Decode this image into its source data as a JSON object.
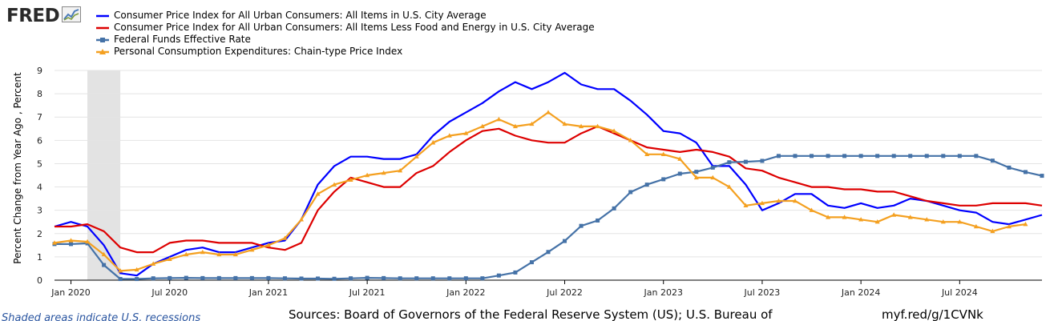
{
  "logo": {
    "text": "FRED",
    "icon": "fred-chart-icon"
  },
  "legend_items": [
    "Consumer Price Index for All Urban Consumers: All Items in U.S. City Average",
    "Consumer Price Index for All Urban Consumers: All Items Less Food and Energy in U.S. City Average",
    "Federal Funds Effective Rate",
    "Personal Consumption Expenditures: Chain-type Price Index"
  ],
  "footer": {
    "note": "Shaded areas indicate U.S. recessions",
    "sources": "Sources: Board of Governors of the Federal Reserve System (US); U.S. Bureau of",
    "url": "myf.red/g/1CVNk"
  },
  "chart_data": {
    "type": "line",
    "ylabel": "Percent Change from Year Ago , Percent",
    "xlabel": "",
    "ylim": [
      0,
      9
    ],
    "yticks": [
      0,
      1,
      2,
      3,
      4,
      5,
      6,
      7,
      8,
      9
    ],
    "xlim": [
      "2019-12",
      "2024-12"
    ],
    "xticks": [
      "Jan 2020",
      "Jul 2020",
      "Jan 2021",
      "Jul 2021",
      "Jan 2022",
      "Jul 2022",
      "Jan 2023",
      "Jul 2023",
      "Jan 2024",
      "Jul 2024"
    ],
    "grid": "horizontal",
    "recession_shading": [
      "2020-02",
      "2020-04"
    ],
    "x": [
      "2019-12",
      "2020-01",
      "2020-02",
      "2020-03",
      "2020-04",
      "2020-05",
      "2020-06",
      "2020-07",
      "2020-08",
      "2020-09",
      "2020-10",
      "2020-11",
      "2020-12",
      "2021-01",
      "2021-02",
      "2021-03",
      "2021-04",
      "2021-05",
      "2021-06",
      "2021-07",
      "2021-08",
      "2021-09",
      "2021-10",
      "2021-11",
      "2021-12",
      "2022-01",
      "2022-02",
      "2022-03",
      "2022-04",
      "2022-05",
      "2022-06",
      "2022-07",
      "2022-08",
      "2022-09",
      "2022-10",
      "2022-11",
      "2022-12",
      "2023-01",
      "2023-02",
      "2023-03",
      "2023-04",
      "2023-05",
      "2023-06",
      "2023-07",
      "2023-08",
      "2023-09",
      "2023-10",
      "2023-11",
      "2023-12",
      "2024-01",
      "2024-02",
      "2024-03",
      "2024-04",
      "2024-05",
      "2024-06",
      "2024-07",
      "2024-08",
      "2024-09",
      "2024-10",
      "2024-11",
      "2024-12"
    ],
    "series": [
      {
        "name": "Consumer Price Index for All Urban Consumers: All Items in U.S. City Average",
        "color": "#0000ff",
        "marker": "none",
        "values": [
          2.3,
          2.5,
          2.3,
          1.5,
          0.3,
          0.2,
          0.7,
          1.0,
          1.3,
          1.4,
          1.2,
          1.2,
          1.4,
          1.6,
          1.7,
          2.6,
          4.1,
          4.9,
          5.3,
          5.3,
          5.2,
          5.2,
          5.4,
          6.2,
          6.8,
          7.2,
          7.6,
          8.1,
          8.5,
          8.2,
          8.5,
          8.9,
          8.4,
          8.2,
          8.2,
          7.7,
          7.1,
          6.4,
          6.3,
          5.9,
          4.9,
          4.9,
          4.1,
          3.0,
          3.3,
          3.7,
          3.7,
          3.2,
          3.1,
          3.3,
          3.1,
          3.2,
          3.5,
          3.4,
          3.2,
          3.0,
          2.9,
          2.5,
          2.4,
          2.6,
          2.8
        ]
      },
      {
        "name": "Consumer Price Index for All Urban Consumers: All Items Less Food and Energy in U.S. City Average",
        "color": "#dd0000",
        "marker": "none",
        "values": [
          2.3,
          2.3,
          2.4,
          2.1,
          1.4,
          1.2,
          1.2,
          1.6,
          1.7,
          1.7,
          1.6,
          1.6,
          1.6,
          1.4,
          1.3,
          1.6,
          3.0,
          3.8,
          4.4,
          4.2,
          4.0,
          4.0,
          4.6,
          4.9,
          5.5,
          6.0,
          6.4,
          6.5,
          6.2,
          6.0,
          5.9,
          5.9,
          6.3,
          6.6,
          6.3,
          6.0,
          5.7,
          5.6,
          5.5,
          5.6,
          5.5,
          5.3,
          4.8,
          4.7,
          4.4,
          4.2,
          4.0,
          4.0,
          3.9,
          3.9,
          3.8,
          3.8,
          3.6,
          3.4,
          3.3,
          3.2,
          3.2,
          3.3,
          3.3,
          3.3,
          3.2
        ]
      },
      {
        "name": "Federal Funds Effective Rate",
        "color": "#4572a7",
        "marker": "square",
        "values": [
          1.55,
          1.55,
          1.58,
          0.65,
          0.05,
          0.05,
          0.08,
          0.09,
          0.1,
          0.09,
          0.09,
          0.09,
          0.09,
          0.09,
          0.08,
          0.07,
          0.07,
          0.06,
          0.08,
          0.1,
          0.09,
          0.08,
          0.08,
          0.08,
          0.08,
          0.08,
          0.08,
          0.2,
          0.33,
          0.77,
          1.21,
          1.68,
          2.33,
          2.56,
          3.08,
          3.78,
          4.1,
          4.33,
          4.57,
          4.65,
          4.83,
          5.06,
          5.08,
          5.12,
          5.33,
          5.33,
          5.33,
          5.33,
          5.33,
          5.33,
          5.33,
          5.33,
          5.33,
          5.33,
          5.33,
          5.33,
          5.33,
          5.13,
          4.83,
          4.64,
          4.48
        ]
      },
      {
        "name": "Personal Consumption Expenditures: Chain-type Price Index",
        "color": "#f4a020",
        "marker": "triangle",
        "values": [
          1.6,
          1.7,
          1.65,
          1.1,
          0.4,
          0.45,
          0.7,
          0.9,
          1.1,
          1.2,
          1.1,
          1.1,
          1.3,
          1.5,
          1.8,
          2.6,
          3.7,
          4.1,
          4.3,
          4.5,
          4.6,
          4.7,
          5.3,
          5.9,
          6.2,
          6.3,
          6.6,
          6.9,
          6.6,
          6.7,
          7.2,
          6.7,
          6.6,
          6.6,
          6.4,
          6.0,
          5.4,
          5.4,
          5.2,
          4.4,
          4.4,
          4.0,
          3.2,
          3.3,
          3.4,
          3.4,
          3.0,
          2.7,
          2.7,
          2.6,
          2.5,
          2.8,
          2.7,
          2.6,
          2.5,
          2.5,
          2.3,
          2.1,
          2.3,
          2.4,
          null
        ]
      }
    ]
  }
}
